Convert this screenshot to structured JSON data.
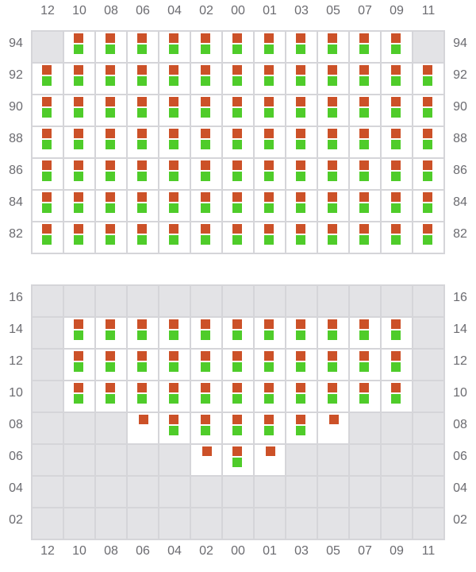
{
  "columns": [
    "12",
    "10",
    "08",
    "06",
    "04",
    "02",
    "00",
    "01",
    "03",
    "05",
    "07",
    "09",
    "11"
  ],
  "colors": {
    "orange": "#cc5128",
    "green": "#4fcc2a",
    "absent": "#e3e3e6",
    "grid": "#d5d5d9"
  },
  "legend_codes": {
    "OG": "orange+green",
    "O": "orange only",
    "-": "absent"
  },
  "top_panel": {
    "rows": [
      {
        "label": "94",
        "cells": [
          "-",
          "OG",
          "OG",
          "OG",
          "OG",
          "OG",
          "OG",
          "OG",
          "OG",
          "OG",
          "OG",
          "OG",
          "-"
        ]
      },
      {
        "label": "92",
        "cells": [
          "OG",
          "OG",
          "OG",
          "OG",
          "OG",
          "OG",
          "OG",
          "OG",
          "OG",
          "OG",
          "OG",
          "OG",
          "OG"
        ]
      },
      {
        "label": "90",
        "cells": [
          "OG",
          "OG",
          "OG",
          "OG",
          "OG",
          "OG",
          "OG",
          "OG",
          "OG",
          "OG",
          "OG",
          "OG",
          "OG"
        ]
      },
      {
        "label": "88",
        "cells": [
          "OG",
          "OG",
          "OG",
          "OG",
          "OG",
          "OG",
          "OG",
          "OG",
          "OG",
          "OG",
          "OG",
          "OG",
          "OG"
        ]
      },
      {
        "label": "86",
        "cells": [
          "OG",
          "OG",
          "OG",
          "OG",
          "OG",
          "OG",
          "OG",
          "OG",
          "OG",
          "OG",
          "OG",
          "OG",
          "OG"
        ]
      },
      {
        "label": "84",
        "cells": [
          "OG",
          "OG",
          "OG",
          "OG",
          "OG",
          "OG",
          "OG",
          "OG",
          "OG",
          "OG",
          "OG",
          "OG",
          "OG"
        ]
      },
      {
        "label": "82",
        "cells": [
          "OG",
          "OG",
          "OG",
          "OG",
          "OG",
          "OG",
          "OG",
          "OG",
          "OG",
          "OG",
          "OG",
          "OG",
          "OG"
        ]
      }
    ]
  },
  "bottom_panel": {
    "rows": [
      {
        "label": "16",
        "cells": [
          "-",
          "-",
          "-",
          "-",
          "-",
          "-",
          "-",
          "-",
          "-",
          "-",
          "-",
          "-",
          "-"
        ]
      },
      {
        "label": "14",
        "cells": [
          "-",
          "OG",
          "OG",
          "OG",
          "OG",
          "OG",
          "OG",
          "OG",
          "OG",
          "OG",
          "OG",
          "OG",
          "-"
        ]
      },
      {
        "label": "12",
        "cells": [
          "-",
          "OG",
          "OG",
          "OG",
          "OG",
          "OG",
          "OG",
          "OG",
          "OG",
          "OG",
          "OG",
          "OG",
          "-"
        ]
      },
      {
        "label": "10",
        "cells": [
          "-",
          "OG",
          "OG",
          "OG",
          "OG",
          "OG",
          "OG",
          "OG",
          "OG",
          "OG",
          "OG",
          "OG",
          "-"
        ]
      },
      {
        "label": "08",
        "cells": [
          "-",
          "-",
          "-",
          "O",
          "OG",
          "OG",
          "OG",
          "OG",
          "OG",
          "O",
          "-",
          "-",
          "-"
        ]
      },
      {
        "label": "06",
        "cells": [
          "-",
          "-",
          "-",
          "-",
          "-",
          "O",
          "OG",
          "O",
          "-",
          "-",
          "-",
          "-",
          "-"
        ]
      },
      {
        "label": "04",
        "cells": [
          "-",
          "-",
          "-",
          "-",
          "-",
          "-",
          "-",
          "-",
          "-",
          "-",
          "-",
          "-",
          "-"
        ]
      },
      {
        "label": "02",
        "cells": [
          "-",
          "-",
          "-",
          "-",
          "-",
          "-",
          "-",
          "-",
          "-",
          "-",
          "-",
          "-",
          "-"
        ]
      }
    ]
  }
}
